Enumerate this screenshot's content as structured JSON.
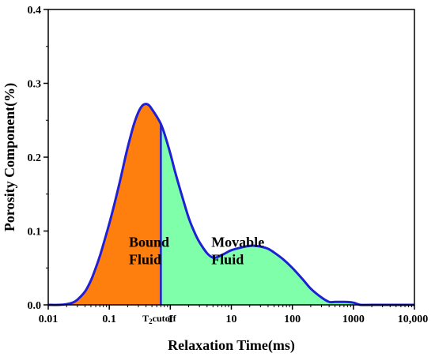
{
  "chart_data": {
    "type": "line",
    "xlabel": "Relaxation Time(ms)",
    "ylabel": "Porosity Component(%)",
    "x_scale": "log",
    "xlim": [
      0.01,
      10000
    ],
    "ylim": [
      0,
      0.4
    ],
    "x_ticks": [
      {
        "value": 0.01,
        "label": "0.01"
      },
      {
        "value": 0.1,
        "label": "0.1"
      },
      {
        "value": 1,
        "label": "1"
      },
      {
        "value": 10,
        "label": "10"
      },
      {
        "value": 100,
        "label": "100"
      },
      {
        "value": 1000,
        "label": "1000"
      },
      {
        "value": 10000,
        "label": "10,000"
      }
    ],
    "y_ticks": [
      {
        "value": 0.0,
        "label": "0.0"
      },
      {
        "value": 0.1,
        "label": "0.1"
      },
      {
        "value": 0.2,
        "label": "0.2"
      },
      {
        "value": 0.3,
        "label": "0.3"
      },
      {
        "value": 0.4,
        "label": "0.4"
      }
    ],
    "grid": false,
    "cutoff": {
      "x": 0.7,
      "label_main": "T",
      "label_sub": "2",
      "label_rest": "cutoff"
    },
    "regions": [
      {
        "name": "bound-fluid",
        "line1": "Bound",
        "line2": "Fluid",
        "color": "#ff7f0e",
        "text_x": 0.21,
        "text_y": 0.055
      },
      {
        "name": "movable-fluid",
        "line1": "Movable",
        "line2": "Fluid",
        "color": "#7fffaa",
        "text_x": 4.7,
        "text_y": 0.055
      }
    ],
    "series": [
      {
        "color": "#1f1fd6",
        "x": [
          0.01,
          0.015,
          0.02,
          0.025,
          0.03,
          0.04,
          0.05,
          0.06,
          0.07,
          0.08,
          0.1,
          0.12,
          0.15,
          0.18,
          0.2,
          0.25,
          0.3,
          0.35,
          0.4,
          0.45,
          0.5,
          0.6,
          0.7,
          0.8,
          1.0,
          1.2,
          1.5,
          2,
          2.5,
          3,
          4,
          5,
          6,
          8,
          10,
          15,
          20,
          25,
          30,
          40,
          50,
          70,
          100,
          150,
          200,
          300,
          400,
          500,
          700,
          1000,
          1300,
          2000,
          5000,
          10000
        ],
        "y": [
          0.0,
          0.0,
          0.001,
          0.003,
          0.007,
          0.018,
          0.033,
          0.05,
          0.066,
          0.082,
          0.11,
          0.135,
          0.168,
          0.197,
          0.213,
          0.243,
          0.261,
          0.27,
          0.272,
          0.27,
          0.265,
          0.255,
          0.245,
          0.232,
          0.205,
          0.18,
          0.152,
          0.118,
          0.098,
          0.085,
          0.07,
          0.064,
          0.065,
          0.07,
          0.074,
          0.078,
          0.08,
          0.08,
          0.079,
          0.076,
          0.071,
          0.062,
          0.05,
          0.034,
          0.022,
          0.01,
          0.004,
          0.004,
          0.004,
          0.003,
          0.0,
          0.0,
          0.0,
          0.0
        ]
      }
    ]
  }
}
